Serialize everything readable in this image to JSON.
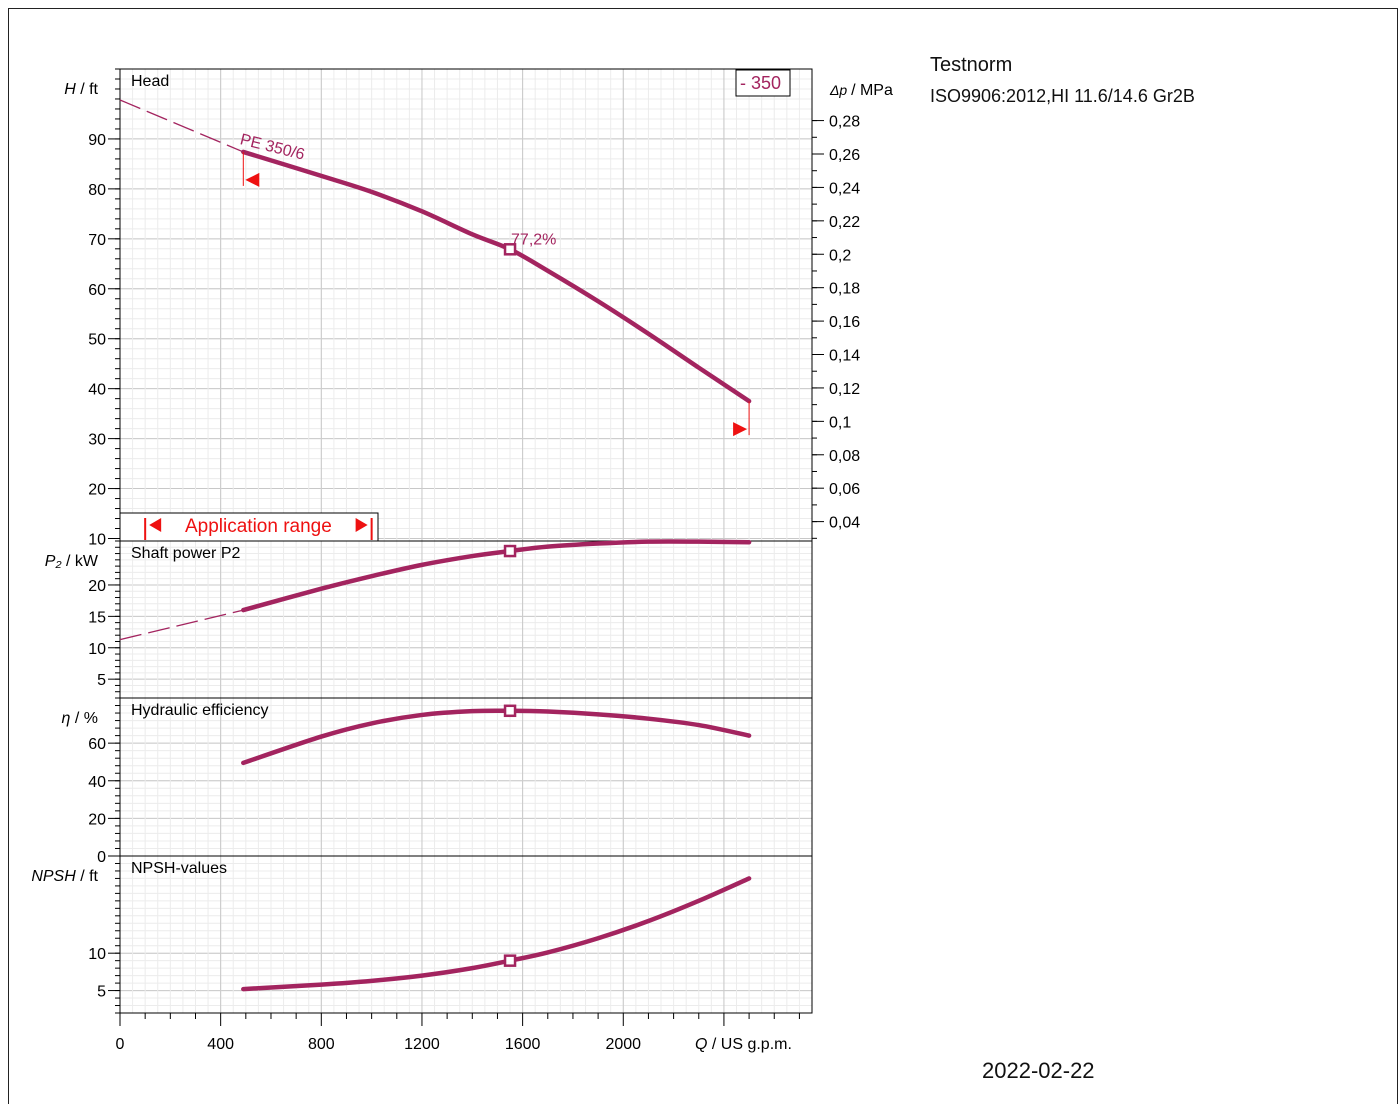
{
  "test_standard": {
    "title": "Testnorm",
    "value": "ISO9906:2012,HI 11.6/14.6 Gr2B"
  },
  "date": "2022-02-22",
  "colors": {
    "curve": "#a3245f",
    "marker_red": "#ee1111",
    "grid": "#c8c8c8",
    "axis": "#000000"
  },
  "chart_data": {
    "type": "line",
    "x_axis": {
      "symbol": "Q",
      "unit": "/ US g.p.m.",
      "range": [
        0,
        2750
      ],
      "ticks": [
        0,
        400,
        800,
        1200,
        1600,
        2000
      ]
    },
    "curve_label": "PE 350/6",
    "impeller_label": "- 350",
    "best_efficiency_point": {
      "x": 1550,
      "label": "77,2%"
    },
    "application_range": {
      "label": "Application range",
      "from": 100,
      "to": 1000
    },
    "operating_range": {
      "from": 490,
      "to": 2500
    },
    "panels": [
      {
        "id": "head",
        "title": "Head",
        "ylabel_symbol": "H",
        "ylabel_unit": "/ ft",
        "ylim": [
          9.5,
          104
        ],
        "yticks": [
          10,
          20,
          30,
          40,
          50,
          60,
          70,
          80,
          90
        ],
        "secondary_axis": {
          "symbol": "Δp",
          "unit": "/ MPa",
          "ticks": [
            "0,04",
            "0,06",
            "0,08",
            "0,1",
            "0,12",
            "0,14",
            "0,16",
            "0,18",
            "0,2",
            "0,22",
            "0,24",
            "0,26",
            "0,28"
          ],
          "tick_values": [
            0.04,
            0.06,
            0.08,
            0.1,
            0.12,
            0.14,
            0.16,
            0.18,
            0.2,
            0.22,
            0.24,
            0.26,
            0.28
          ]
        },
        "dashed": [
          [
            0,
            97.8
          ],
          [
            490,
            87.4
          ]
        ],
        "series": [
          [
            490,
            87.4
          ],
          [
            800,
            82.6
          ],
          [
            1000,
            79.4
          ],
          [
            1200,
            75.5
          ],
          [
            1400,
            70.9
          ],
          [
            1550,
            67.9
          ],
          [
            1700,
            63.6
          ],
          [
            1900,
            57.5
          ],
          [
            2100,
            51.0
          ],
          [
            2300,
            44.2
          ],
          [
            2500,
            37.5
          ]
        ]
      },
      {
        "id": "power",
        "title": "Shaft power P2",
        "ylabel_symbol": "P₂",
        "ylabel_unit": "/ kW",
        "ylim": [
          2,
          27
        ],
        "yticks": [
          5,
          10,
          15,
          20
        ],
        "dashed": [
          [
            0,
            11.3
          ],
          [
            490,
            16.0
          ]
        ],
        "series": [
          [
            490,
            16.0
          ],
          [
            800,
            19.4
          ],
          [
            1000,
            21.4
          ],
          [
            1200,
            23.2
          ],
          [
            1400,
            24.6
          ],
          [
            1550,
            25.4
          ],
          [
            1700,
            26.1
          ],
          [
            1900,
            26.6
          ],
          [
            2100,
            26.9
          ],
          [
            2300,
            26.9
          ],
          [
            2500,
            26.8
          ]
        ]
      },
      {
        "id": "efficiency",
        "title": "Hydraulic efficiency",
        "ylabel_symbol": "η",
        "ylabel_unit": "/ %",
        "ylim": [
          0,
          84
        ],
        "yticks": [
          0,
          20,
          40,
          60
        ],
        "series": [
          [
            490,
            49.5
          ],
          [
            800,
            63.5
          ],
          [
            1000,
            70.5
          ],
          [
            1200,
            75.0
          ],
          [
            1400,
            77.0
          ],
          [
            1550,
            77.2
          ],
          [
            1700,
            76.8
          ],
          [
            1900,
            75.3
          ],
          [
            2100,
            73.0
          ],
          [
            2300,
            69.6
          ],
          [
            2500,
            64.0
          ]
        ]
      },
      {
        "id": "npsh",
        "title": "NPSH-values",
        "ylabel_symbol": "NPSH",
        "ylabel_unit": "/ ft",
        "ylim": [
          2,
          23
        ],
        "yticks": [
          5,
          10
        ],
        "series": [
          [
            490,
            5.2
          ],
          [
            800,
            5.8
          ],
          [
            1000,
            6.3
          ],
          [
            1200,
            7.0
          ],
          [
            1400,
            8.0
          ],
          [
            1550,
            9.0
          ],
          [
            1700,
            10.1
          ],
          [
            1900,
            12.0
          ],
          [
            2100,
            14.3
          ],
          [
            2300,
            17.0
          ],
          [
            2500,
            20.0
          ]
        ]
      }
    ]
  }
}
